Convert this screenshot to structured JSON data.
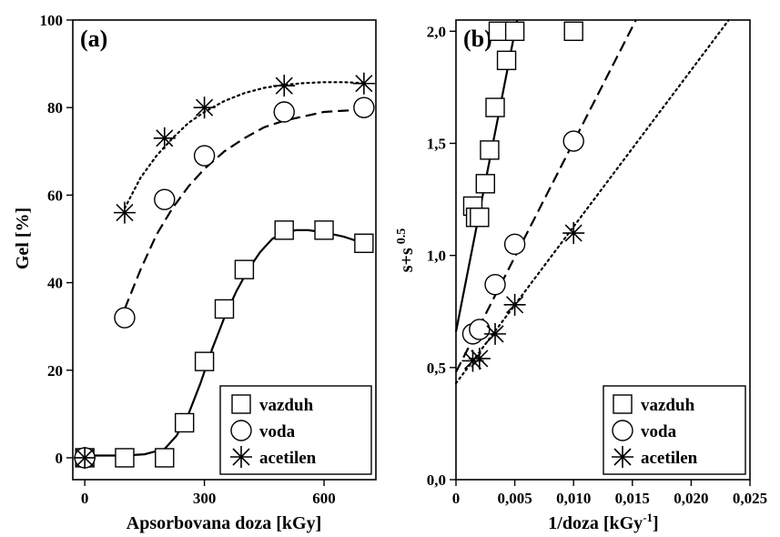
{
  "chart_data": [
    {
      "type": "scatter",
      "panel_label": "(a)",
      "xlabel": "Apsorbovana doza [kGy]",
      "ylabel": "Gel [%]",
      "xlim": [
        -30,
        730
      ],
      "ylim": [
        -5,
        100
      ],
      "xticks": [
        0,
        300,
        600
      ],
      "xtick_labels": [
        "0",
        "300",
        "600"
      ],
      "yticks": [
        0,
        20,
        40,
        60,
        80,
        100
      ],
      "ytick_labels": [
        "0",
        "20",
        "40",
        "60",
        "80",
        "100"
      ],
      "legend_position": "bottom-right",
      "series": [
        {
          "name": "vazduh",
          "marker": "square",
          "line_style": "solid",
          "x": [
            0,
            100,
            200,
            250,
            300,
            350,
            400,
            500,
            600,
            700
          ],
          "y": [
            0,
            0,
            0,
            8,
            22,
            34,
            43,
            52,
            52,
            49
          ],
          "fit_x": [
            0,
            100,
            150,
            200,
            230,
            260,
            290,
            320,
            350,
            380,
            410,
            440,
            470,
            500,
            530,
            560,
            600,
            650,
            700
          ],
          "fit_y": [
            0.5,
            0.5,
            0.8,
            2,
            5,
            10,
            17,
            25,
            32,
            38,
            43,
            47,
            50,
            51.5,
            52,
            52,
            51.5,
            50.5,
            49
          ]
        },
        {
          "name": "voda",
          "marker": "circle",
          "line_style": "dashed",
          "x": [
            0,
            100,
            200,
            300,
            500,
            700
          ],
          "y": [
            0,
            32,
            59,
            69,
            79,
            80
          ],
          "fit_x": [
            100,
            140,
            180,
            220,
            260,
            300,
            350,
            400,
            450,
            500,
            550,
            600,
            650,
            700
          ],
          "fit_y": [
            34,
            43,
            51,
            57,
            62,
            66,
            70,
            73,
            75.5,
            77,
            78,
            79,
            79.3,
            79.5
          ]
        },
        {
          "name": "acetilen",
          "marker": "asterisk",
          "line_style": "dotted",
          "x": [
            0,
            100,
            200,
            300,
            500,
            700
          ],
          "y": [
            0,
            56,
            73,
            80,
            85,
            85.5
          ],
          "fit_x": [
            100,
            140,
            180,
            220,
            260,
            300,
            350,
            400,
            450,
            500,
            550,
            600,
            650,
            700
          ],
          "fit_y": [
            57,
            64,
            69,
            73,
            76.5,
            79,
            81.5,
            83.3,
            84.5,
            85.2,
            85.6,
            85.8,
            85.8,
            85.6
          ]
        }
      ]
    },
    {
      "type": "scatter",
      "panel_label": "(b)",
      "xlabel_main": "1/doza [kGy",
      "xlabel_sup": "-1",
      "xlabel_end": "]",
      "ylabel_main": "s+s",
      "ylabel_sup": "0.5",
      "xlim": [
        0,
        0.025
      ],
      "ylim": [
        0,
        2.05
      ],
      "xticks": [
        0,
        0.005,
        0.01,
        0.015,
        0.02,
        0.025
      ],
      "xtick_labels": [
        "0",
        "0,005",
        "0,010",
        "0,015",
        "0,020",
        "0,025"
      ],
      "yticks": [
        0,
        0.5,
        1.0,
        1.5,
        2.0
      ],
      "ytick_labels": [
        "0,0",
        "0,5",
        "1,0",
        "1,5",
        "2,0"
      ],
      "legend_position": "bottom-right",
      "series": [
        {
          "name": "vazduh",
          "marker": "square",
          "line_style": "solid",
          "x": [
            0.00143,
            0.00167,
            0.002,
            0.0025,
            0.00286,
            0.00333,
            0.0036,
            0.0043,
            0.005,
            0.01
          ],
          "y": [
            1.22,
            1.17,
            1.17,
            1.32,
            1.47,
            1.66,
            2.0,
            1.87,
            2.0,
            2.0
          ],
          "fit_x": [
            0,
            0.0052
          ],
          "fit_y": [
            0.66,
            2.05
          ]
        },
        {
          "name": "voda",
          "marker": "circle",
          "line_style": "dashed",
          "x": [
            0.00143,
            0.002,
            0.00333,
            0.005,
            0.01
          ],
          "y": [
            0.65,
            0.67,
            0.87,
            1.05,
            1.51
          ],
          "fit_x": [
            0,
            0.0153
          ],
          "fit_y": [
            0.48,
            2.05
          ]
        },
        {
          "name": "acetilen",
          "marker": "asterisk",
          "line_style": "dotted",
          "x": [
            0.00143,
            0.002,
            0.00333,
            0.005,
            0.01
          ],
          "y": [
            0.53,
            0.54,
            0.65,
            0.78,
            1.1
          ],
          "fit_x": [
            0,
            0.0232
          ],
          "fit_y": [
            0.43,
            2.05
          ]
        }
      ]
    }
  ]
}
